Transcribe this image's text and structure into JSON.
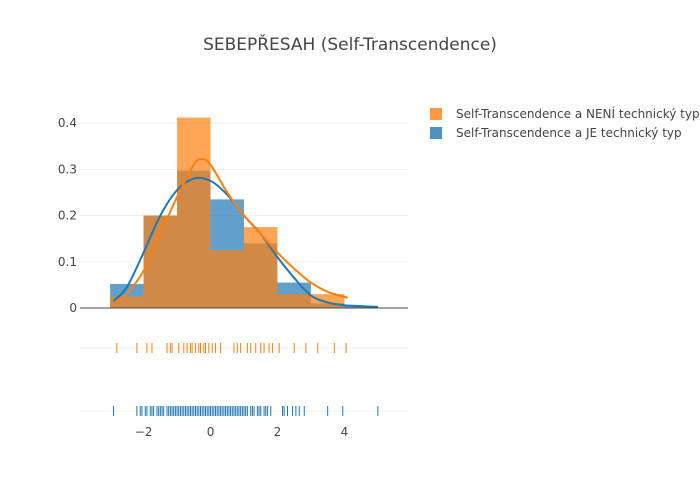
{
  "chart_data": {
    "type": "histogram-density-rug",
    "title": "SEBEPŘESAH (Self-Transcendence)",
    "xlabel": "",
    "ylabel": "",
    "xlim": [
      -3.9,
      5.9
    ],
    "ylim": [
      0,
      0.45
    ],
    "xticks": [
      "−2",
      "0",
      "2",
      "4"
    ],
    "xtick_values": [
      -2,
      0,
      2,
      4
    ],
    "yticks": [
      "0",
      "0.1",
      "0.2",
      "0.3",
      "0.4"
    ],
    "ytick_values": [
      0,
      0.1,
      0.2,
      0.3,
      0.4
    ],
    "legend_position": "top-right",
    "series": [
      {
        "name": "Self-Transcendence a JE technický typ",
        "color": "#1f77b4",
        "histogram": {
          "bins": [
            [
              -3,
              -2
            ],
            [
              -2,
              -1
            ],
            [
              -1,
              0
            ],
            [
              0,
              1
            ],
            [
              1,
              2
            ],
            [
              2,
              3
            ],
            [
              3,
              4
            ],
            [
              4,
              5
            ]
          ],
          "values": [
            0.052,
            0.2,
            0.297,
            0.235,
            0.14,
            0.055,
            0.01,
            0.005
          ]
        },
        "density": {
          "x": [
            -2.9,
            -2.5,
            -2.0,
            -1.5,
            -1.0,
            -0.5,
            0.0,
            0.5,
            1.0,
            1.5,
            2.0,
            2.5,
            3.0,
            3.5,
            4.0,
            4.5,
            5.0
          ],
          "y": [
            0.015,
            0.045,
            0.12,
            0.2,
            0.255,
            0.28,
            0.275,
            0.245,
            0.2,
            0.16,
            0.11,
            0.065,
            0.027,
            0.012,
            0.006,
            0.004,
            0.002
          ]
        },
        "rug": [
          -2.9,
          -2.2,
          -2.1,
          -2.05,
          -1.95,
          -1.9,
          -1.8,
          -1.75,
          -1.7,
          -1.6,
          -1.55,
          -1.5,
          -1.45,
          -1.4,
          -1.3,
          -1.25,
          -1.2,
          -1.15,
          -1.1,
          -1.05,
          -1.0,
          -0.95,
          -0.9,
          -0.85,
          -0.8,
          -0.75,
          -0.7,
          -0.65,
          -0.6,
          -0.55,
          -0.5,
          -0.45,
          -0.4,
          -0.35,
          -0.3,
          -0.25,
          -0.2,
          -0.15,
          -0.1,
          -0.05,
          0.0,
          0.05,
          0.1,
          0.15,
          0.2,
          0.25,
          0.3,
          0.35,
          0.4,
          0.45,
          0.5,
          0.55,
          0.6,
          0.65,
          0.7,
          0.75,
          0.8,
          0.85,
          0.9,
          0.95,
          1.0,
          1.05,
          1.1,
          1.2,
          1.25,
          1.3,
          1.4,
          1.45,
          1.5,
          1.6,
          1.65,
          1.7,
          1.8,
          2.15,
          2.2,
          2.3,
          2.45,
          2.55,
          2.65,
          2.8,
          3.5,
          3.95,
          5.0
        ]
      },
      {
        "name": "Self-Transcendence a NENÍ technický typ",
        "color": "#ff7f0e",
        "histogram": {
          "bins": [
            [
              -3,
              -2
            ],
            [
              -2,
              -1
            ],
            [
              -1,
              0
            ],
            [
              0,
              1
            ],
            [
              1,
              2
            ],
            [
              2,
              3
            ],
            [
              3,
              4
            ]
          ],
          "values": [
            0.025,
            0.2,
            0.412,
            0.125,
            0.175,
            0.03,
            0.03
          ]
        },
        "density": {
          "x": [
            -2.8,
            -2.5,
            -2.0,
            -1.5,
            -1.0,
            -0.5,
            -0.25,
            0.0,
            0.5,
            1.0,
            1.5,
            2.0,
            2.5,
            3.0,
            3.5,
            4.1
          ],
          "y": [
            0.01,
            0.03,
            0.08,
            0.16,
            0.24,
            0.31,
            0.322,
            0.31,
            0.25,
            0.2,
            0.16,
            0.12,
            0.085,
            0.055,
            0.035,
            0.022
          ]
        },
        "rug": [
          -2.8,
          -2.2,
          -1.9,
          -1.75,
          -1.3,
          -1.2,
          -1.15,
          -0.95,
          -0.8,
          -0.7,
          -0.6,
          -0.55,
          -0.45,
          -0.35,
          -0.3,
          -0.2,
          -0.15,
          -0.05,
          0.05,
          0.15,
          0.3,
          0.7,
          0.8,
          0.9,
          1.1,
          1.2,
          1.35,
          1.5,
          1.6,
          1.75,
          1.85,
          2.05,
          2.5,
          2.85,
          3.2,
          3.7,
          4.05
        ]
      }
    ]
  }
}
